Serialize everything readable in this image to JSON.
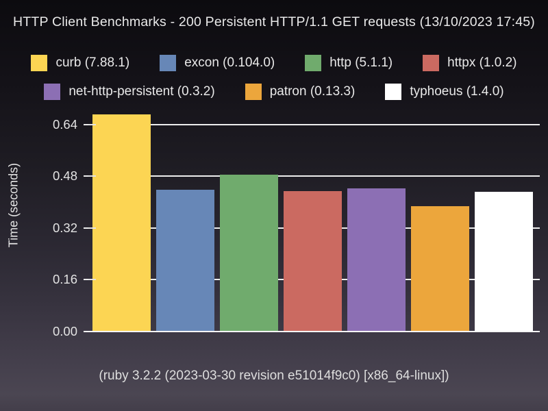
{
  "title": "HTTP Client Benchmarks - 200 Persistent HTTP/1.1 GET requests (13/10/2023 17:45)",
  "footer": "(ruby 3.2.2 (2023-03-30 revision e51014f9c0) [x86_64-linux])",
  "yaxis": {
    "label": "Time (seconds)"
  },
  "colors": {
    "background_top": "#0c0b0f",
    "background_bottom": "#4b4652",
    "grid": "#ededed",
    "text": "#e9e9e9"
  },
  "chart_data": {
    "type": "bar",
    "title": "HTTP Client Benchmarks - 200 Persistent HTTP/1.1 GET requests (13/10/2023 17:45)",
    "subtitle": "(ruby 3.2.2 (2023-03-30 revision e51014f9c0) [x86_64-linux])",
    "xlabel": "",
    "ylabel": "Time (seconds)",
    "yticks": [
      0.0,
      0.16,
      0.32,
      0.48,
      0.64
    ],
    "ylim": [
      0,
      0.685
    ],
    "grid": true,
    "legend_position": "top",
    "categories": [
      "curb",
      "excon",
      "http",
      "httpx",
      "net-http-persistent",
      "patron",
      "typhoeus"
    ],
    "series": [
      {
        "name": "curb (7.88.1)",
        "library": "curb",
        "version": "7.88.1",
        "value": 0.672,
        "color": "#fcd553"
      },
      {
        "name": "excon (0.104.0)",
        "library": "excon",
        "version": "0.104.0",
        "value": 0.439,
        "color": "#6787b7"
      },
      {
        "name": "http (5.1.1)",
        "library": "http",
        "version": "5.1.1",
        "value": 0.485,
        "color": "#70ab6d"
      },
      {
        "name": "httpx (1.0.2)",
        "library": "httpx",
        "version": "1.0.2",
        "value": 0.434,
        "color": "#cb6a61"
      },
      {
        "name": "net-http-persistent (0.3.2)",
        "library": "net-http-persistent",
        "version": "0.3.2",
        "value": 0.443,
        "color": "#8c6fb4"
      },
      {
        "name": "patron (0.13.3)",
        "library": "patron",
        "version": "0.13.3",
        "value": 0.388,
        "color": "#eca63c"
      },
      {
        "name": "typhoeus (1.4.0)",
        "library": "typhoeus",
        "version": "1.4.0",
        "value": 0.432,
        "color": "#ffffff"
      }
    ]
  }
}
